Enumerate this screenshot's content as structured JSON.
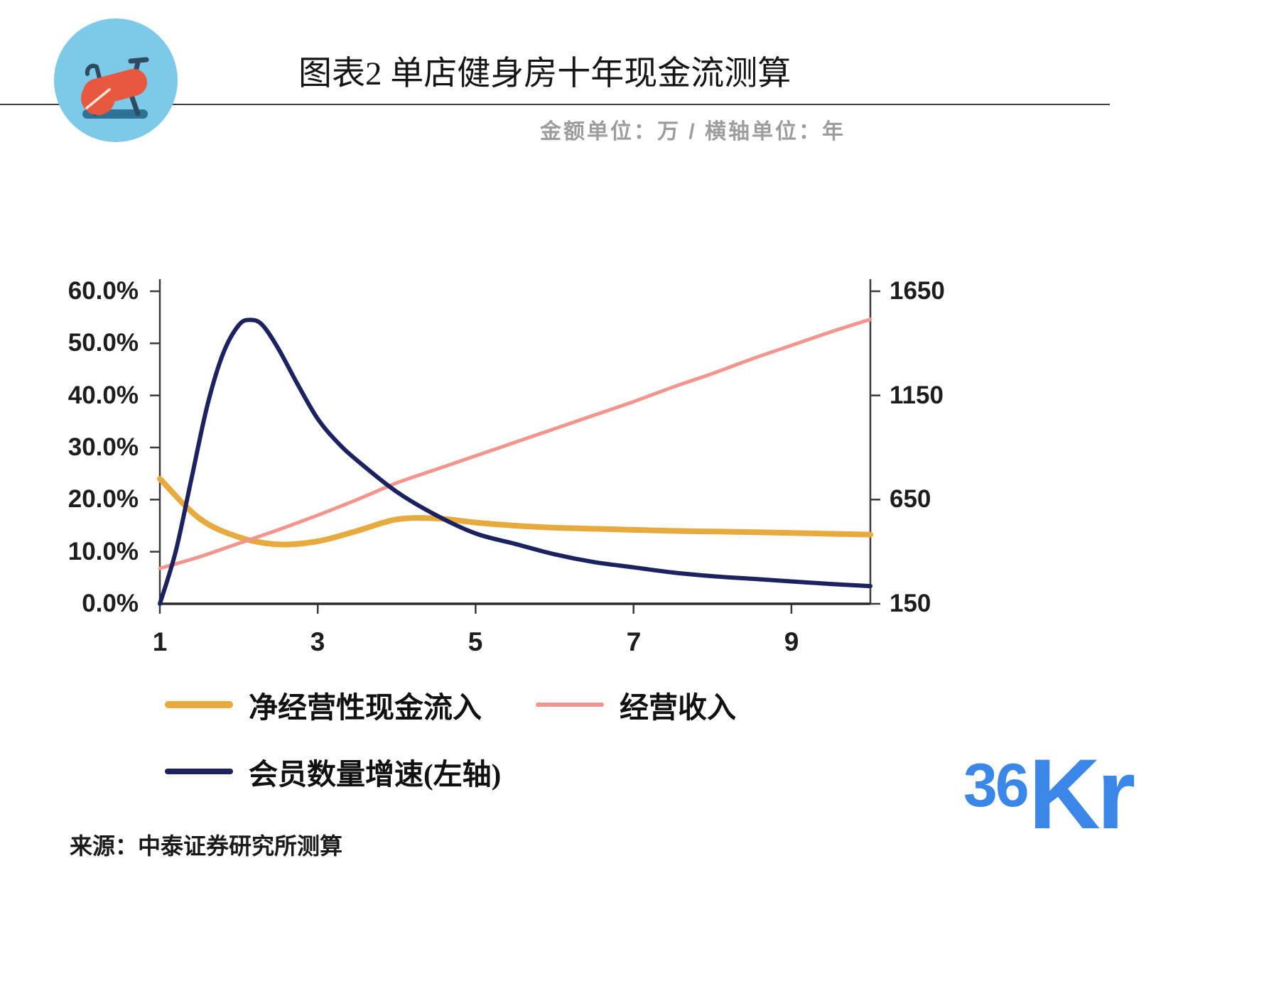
{
  "header": {
    "title": "图表2 单店健身房十年现金流测算",
    "subtitle": "金额单位：万 / 横轴单位：年"
  },
  "chart_data": {
    "type": "line",
    "title": "单店健身房十年现金流测算",
    "amount_unit": "万",
    "x_axis_unit": "年",
    "grid": false,
    "legend_position": "bottom",
    "x_range": [
      1,
      10
    ],
    "x_tick_labels": [
      "1",
      "3",
      "5",
      "7",
      "9"
    ],
    "left_axis": {
      "min": 0,
      "max": 60,
      "ticks": [
        "0.0%",
        "10.0%",
        "20.0%",
        "30.0%",
        "40.0%",
        "50.0%",
        "60.0%"
      ]
    },
    "right_axis": {
      "min": 150,
      "max": 1650,
      "ticks": [
        "150",
        "650",
        "1150",
        "1650"
      ]
    },
    "series": [
      {
        "name": "净经营性现金流入",
        "axis": "right",
        "color": "#E6AA3E",
        "width": 8,
        "x": [
          1,
          1.5,
          2,
          2.5,
          3,
          3.5,
          4,
          4.5,
          5,
          5.5,
          6,
          6.5,
          7,
          7.5,
          8,
          8.5,
          9,
          9.5,
          10
        ],
        "values": [
          750,
          560,
          470,
          435,
          450,
          500,
          555,
          560,
          540,
          525,
          515,
          510,
          505,
          500,
          497,
          494,
          490,
          486,
          482
        ]
      },
      {
        "name": "经营收入",
        "axis": "right",
        "color": "#F2958D",
        "width": 5,
        "x": [
          1,
          1.5,
          2,
          2.5,
          3,
          3.5,
          4,
          4.5,
          5,
          5.5,
          6,
          6.5,
          7,
          7.5,
          8,
          8.5,
          9,
          9.5,
          10
        ],
        "values": [
          320,
          375,
          440,
          505,
          575,
          650,
          730,
          795,
          860,
          925,
          990,
          1055,
          1120,
          1190,
          1255,
          1325,
          1390,
          1455,
          1515
        ]
      },
      {
        "name": "会员数量增速(左轴)",
        "axis": "left",
        "color": "#1C2260",
        "width": 6,
        "x": [
          1,
          1.2,
          1.4,
          1.6,
          1.8,
          2,
          2.15,
          2.3,
          2.5,
          2.75,
          3,
          3.25,
          3.5,
          4,
          4.5,
          5,
          5.5,
          6,
          6.5,
          7,
          7.5,
          8,
          8.5,
          9,
          9.5,
          10
        ],
        "values": [
          0,
          10,
          24,
          38,
          48,
          53.5,
          54.5,
          53.5,
          49,
          42,
          35.5,
          31,
          27.5,
          21.5,
          17,
          13.5,
          11.5,
          9.5,
          8,
          7,
          6,
          5.3,
          4.8,
          4.3,
          3.8,
          3.4
        ]
      }
    ]
  },
  "source": "来源：中泰证券研究所测算",
  "logo": {
    "part1": "36",
    "part2": "Kr",
    "color": "#3B87E8"
  }
}
